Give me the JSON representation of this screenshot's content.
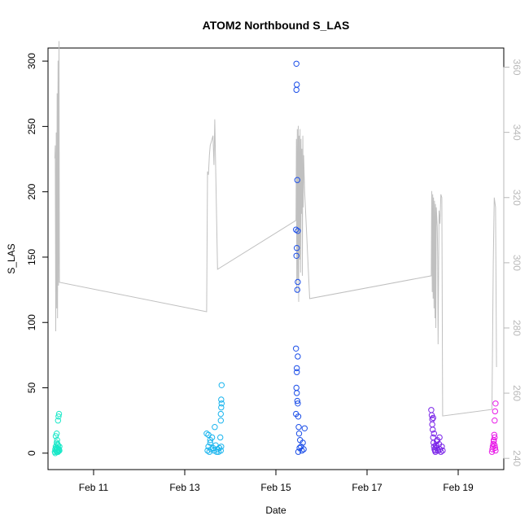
{
  "chart_data": {
    "type": "scatter",
    "title": "ATOM2 Northbound S_LAS",
    "xlabel": "Date",
    "ylabel": "S_LAS",
    "x_domain": [
      "2016-02-10T00:00",
      "2016-02-20T00:00"
    ],
    "x_ticks": [
      {
        "label": "Feb 11",
        "date": "2016-02-11T00:00"
      },
      {
        "label": "Feb 13",
        "date": "2016-02-13T00:00"
      },
      {
        "label": "Feb 15",
        "date": "2016-02-15T00:00"
      },
      {
        "label": "Feb 17",
        "date": "2016-02-17T00:00"
      },
      {
        "label": "Feb 19",
        "date": "2016-02-19T00:00"
      }
    ],
    "y_left": {
      "ylim": [
        0,
        300
      ],
      "ticks": [
        0,
        50,
        100,
        150,
        200,
        250,
        300
      ]
    },
    "y_right": {
      "ylim": [
        240,
        370
      ],
      "ticks": [
        240,
        260,
        280,
        300,
        320,
        340,
        360
      ],
      "color": "#b8b8b8"
    },
    "line_color": "#c0c0c0",
    "series": [
      {
        "type": "line",
        "axis": "right",
        "points": [
          [
            "2016-02-10T03:36",
            332
          ],
          [
            "2016-02-10T03:50",
            336
          ],
          [
            "2016-02-10T04:05",
            279
          ],
          [
            "2016-02-10T04:19",
            340
          ],
          [
            "2016-02-10T04:34",
            286
          ],
          [
            "2016-02-10T04:48",
            352
          ],
          [
            "2016-02-10T05:02",
            283
          ],
          [
            "2016-02-10T05:17",
            362
          ],
          [
            "2016-02-10T05:31",
            293
          ],
          [
            "2016-02-10T05:46",
            368
          ],
          [
            "2016-02-10T06:00",
            294
          ],
          [
            "2016-02-13T11:31",
            285
          ],
          [
            "2016-02-13T12:00",
            328
          ],
          [
            "2016-02-13T12:29",
            327
          ],
          [
            "2016-02-13T12:58",
            333
          ],
          [
            "2016-02-13T13:26",
            336
          ],
          [
            "2016-02-13T13:55",
            337
          ],
          [
            "2016-02-13T14:24",
            338
          ],
          [
            "2016-02-13T14:53",
            339
          ],
          [
            "2016-02-13T15:22",
            330
          ],
          [
            "2016-02-13T15:50",
            344
          ],
          [
            "2016-02-13T17:17",
            298
          ],
          [
            "2016-02-15T10:34",
            313
          ],
          [
            "2016-02-15T10:48",
            338
          ],
          [
            "2016-02-15T11:02",
            291
          ],
          [
            "2016-02-15T11:17",
            341
          ],
          [
            "2016-02-15T11:31",
            295
          ],
          [
            "2016-02-15T11:46",
            342
          ],
          [
            "2016-02-15T12:00",
            288
          ],
          [
            "2016-02-15T12:14",
            339
          ],
          [
            "2016-02-15T12:29",
            301
          ],
          [
            "2016-02-15T12:43",
            341
          ],
          [
            "2016-02-15T12:58",
            297
          ],
          [
            "2016-02-15T13:12",
            338
          ],
          [
            "2016-02-15T13:26",
            315
          ],
          [
            "2016-02-15T13:41",
            335
          ],
          [
            "2016-02-15T13:55",
            296
          ],
          [
            "2016-02-15T14:10",
            339
          ],
          [
            "2016-02-15T14:24",
            317
          ],
          [
            "2016-02-15T14:38",
            333
          ],
          [
            "2016-02-15T15:07",
            322
          ],
          [
            "2016-02-15T17:46",
            289
          ],
          [
            "2016-02-18T09:50",
            296
          ],
          [
            "2016-02-18T10:05",
            322
          ],
          [
            "2016-02-18T10:19",
            291
          ],
          [
            "2016-02-18T10:34",
            321
          ],
          [
            "2016-02-18T10:48",
            289
          ],
          [
            "2016-02-18T11:02",
            320
          ],
          [
            "2016-02-18T11:17",
            286
          ],
          [
            "2016-02-18T11:31",
            319
          ],
          [
            "2016-02-18T11:46",
            283
          ],
          [
            "2016-02-18T12:00",
            318
          ],
          [
            "2016-02-18T12:14",
            280
          ],
          [
            "2016-02-18T12:29",
            317
          ],
          [
            "2016-02-18T12:58",
            311
          ],
          [
            "2016-02-18T13:12",
            301
          ],
          [
            "2016-02-18T13:26",
            275
          ],
          [
            "2016-02-18T13:55",
            316
          ],
          [
            "2016-02-18T14:24",
            312
          ],
          [
            "2016-02-18T14:53",
            321
          ],
          [
            "2016-02-18T15:22",
            320
          ],
          [
            "2016-02-18T15:50",
            253
          ],
          [
            "2016-02-19T17:46",
            255
          ],
          [
            "2016-02-19T18:29",
            300
          ],
          [
            "2016-02-19T18:58",
            320
          ],
          [
            "2016-02-19T19:41",
            317
          ],
          [
            "2016-02-19T20:10",
            268
          ]
        ]
      },
      {
        "type": "scatter",
        "axis": "left",
        "groups": [
          {
            "color": "#19e8c8",
            "values": [
              [
                "2016-02-10T03:36",
                1
              ],
              [
                "2016-02-10T03:50",
                3
              ],
              [
                "2016-02-10T04:05",
                5
              ],
              [
                "2016-02-10T04:19",
                2
              ],
              [
                "2016-02-10T04:34",
                8
              ],
              [
                "2016-02-10T04:48",
                4
              ],
              [
                "2016-02-10T05:02",
                1
              ],
              [
                "2016-02-10T05:17",
                6
              ],
              [
                "2016-02-10T05:31",
                2
              ],
              [
                "2016-02-10T05:46",
                3
              ],
              [
                "2016-02-10T04:05",
                13
              ],
              [
                "2016-02-10T04:34",
                15
              ],
              [
                "2016-02-10T05:17",
                25
              ],
              [
                "2016-02-10T05:31",
                28
              ],
              [
                "2016-02-10T05:46",
                30
              ],
              [
                "2016-02-10T04:48",
                10
              ],
              [
                "2016-02-10T05:02",
                7
              ],
              [
                "2016-02-10T06:00",
                2
              ],
              [
                "2016-02-10T03:50",
                0
              ],
              [
                "2016-02-10T04:19",
                4
              ],
              [
                "2016-02-10T05:17",
                1
              ],
              [
                "2016-02-10T06:00",
                5
              ],
              [
                "2016-02-10T05:02",
                3
              ],
              [
                "2016-02-10T04:34",
                1
              ]
            ]
          },
          {
            "color": "#19b4ee",
            "values": [
              [
                "2016-02-13T12:00",
                2
              ],
              [
                "2016-02-13T12:29",
                5
              ],
              [
                "2016-02-13T12:58",
                1
              ],
              [
                "2016-02-13T13:26",
                8
              ],
              [
                "2016-02-13T13:55",
                3
              ],
              [
                "2016-02-13T14:24",
                12
              ],
              [
                "2016-02-13T14:53",
                4
              ],
              [
                "2016-02-13T15:22",
                2
              ],
              [
                "2016-02-13T15:50",
                20
              ],
              [
                "2016-02-13T16:19",
                6
              ],
              [
                "2016-02-13T16:48",
                1
              ],
              [
                "2016-02-13T17:17",
                3
              ],
              [
                "2016-02-13T11:31",
                15
              ],
              [
                "2016-02-13T12:29",
                14
              ],
              [
                "2016-02-13T13:26",
                10
              ],
              [
                "2016-02-13T18:58",
                30
              ],
              [
                "2016-02-13T19:12",
                35
              ],
              [
                "2016-02-13T19:12",
                41
              ],
              [
                "2016-02-13T19:26",
                52
              ],
              [
                "2016-02-13T18:58",
                25
              ],
              [
                "2016-02-13T19:26",
                38
              ],
              [
                "2016-02-13T18:43",
                12
              ],
              [
                "2016-02-13T19:12",
                5
              ],
              [
                "2016-02-13T18:58",
                2
              ],
              [
                "2016-02-13T17:46",
                1
              ],
              [
                "2016-02-13T18:14",
                4
              ]
            ]
          },
          {
            "color": "#1a4de8",
            "values": [
              [
                "2016-02-15T10:34",
                171
              ],
              [
                "2016-02-15T10:48",
                298
              ],
              [
                "2016-02-15T11:02",
                282
              ],
              [
                "2016-02-15T10:48",
                278
              ],
              [
                "2016-02-15T11:17",
                209
              ],
              [
                "2016-02-15T11:31",
                170
              ],
              [
                "2016-02-15T11:02",
                157
              ],
              [
                "2016-02-15T10:48",
                151
              ],
              [
                "2016-02-15T11:31",
                131
              ],
              [
                "2016-02-15T11:17",
                125
              ],
              [
                "2016-02-15T10:34",
                80
              ],
              [
                "2016-02-15T11:31",
                74
              ],
              [
                "2016-02-15T11:02",
                65
              ],
              [
                "2016-02-15T11:02",
                62
              ],
              [
                "2016-02-15T10:48",
                50
              ],
              [
                "2016-02-15T11:02",
                46
              ],
              [
                "2016-02-15T11:17",
                40
              ],
              [
                "2016-02-15T11:31",
                38
              ],
              [
                "2016-02-15T10:34",
                30
              ],
              [
                "2016-02-15T11:46",
                28
              ],
              [
                "2016-02-15T12:00",
                20
              ],
              [
                "2016-02-15T12:14",
                15
              ],
              [
                "2016-02-15T12:43",
                10
              ],
              [
                "2016-02-15T13:12",
                5
              ],
              [
                "2016-02-15T13:41",
                2
              ],
              [
                "2016-02-15T14:10",
                8
              ],
              [
                "2016-02-15T14:38",
                3
              ],
              [
                "2016-02-15T15:07",
                19
              ],
              [
                "2016-02-15T11:46",
                1
              ],
              [
                "2016-02-15T12:29",
                4
              ]
            ]
          },
          {
            "color": "#7a24e8",
            "values": [
              [
                "2016-02-18T09:50",
                33
              ],
              [
                "2016-02-18T10:05",
                29
              ],
              [
                "2016-02-18T10:19",
                22
              ],
              [
                "2016-02-18T10:34",
                18
              ],
              [
                "2016-02-18T10:48",
                12
              ],
              [
                "2016-02-18T11:02",
                8
              ],
              [
                "2016-02-18T11:17",
                5
              ],
              [
                "2016-02-18T11:31",
                3
              ],
              [
                "2016-02-18T11:46",
                2
              ],
              [
                "2016-02-18T12:00",
                1
              ],
              [
                "2016-02-18T12:14",
                6
              ],
              [
                "2016-02-18T12:29",
                4
              ],
              [
                "2016-02-18T12:58",
                10
              ],
              [
                "2016-02-18T13:26",
                2
              ],
              [
                "2016-02-18T13:55",
                7
              ],
              [
                "2016-02-18T14:24",
                3
              ],
              [
                "2016-02-18T14:53",
                1
              ],
              [
                "2016-02-18T15:22",
                5
              ],
              [
                "2016-02-18T15:50",
                2
              ],
              [
                "2016-02-18T10:19",
                26
              ],
              [
                "2016-02-18T10:48",
                27
              ],
              [
                "2016-02-18T11:17",
                15
              ],
              [
                "2016-02-18T12:43",
                9
              ],
              [
                "2016-02-18T14:10",
                12
              ]
            ]
          },
          {
            "color": "#e81ae8",
            "values": [
              [
                "2016-02-19T17:46",
                1
              ],
              [
                "2016-02-19T18:00",
                3
              ],
              [
                "2016-02-19T18:14",
                5
              ],
              [
                "2016-02-19T18:29",
                7
              ],
              [
                "2016-02-19T18:43",
                10
              ],
              [
                "2016-02-19T18:58",
                14
              ],
              [
                "2016-02-19T19:12",
                6
              ],
              [
                "2016-02-19T19:26",
                4
              ],
              [
                "2016-02-19T19:41",
                2
              ],
              [
                "2016-02-19T19:12",
                25
              ],
              [
                "2016-02-19T19:26",
                32
              ],
              [
                "2016-02-19T19:41",
                38
              ],
              [
                "2016-02-19T18:43",
                9
              ],
              [
                "2016-02-19T19:12",
                12
              ]
            ]
          }
        ]
      }
    ]
  }
}
